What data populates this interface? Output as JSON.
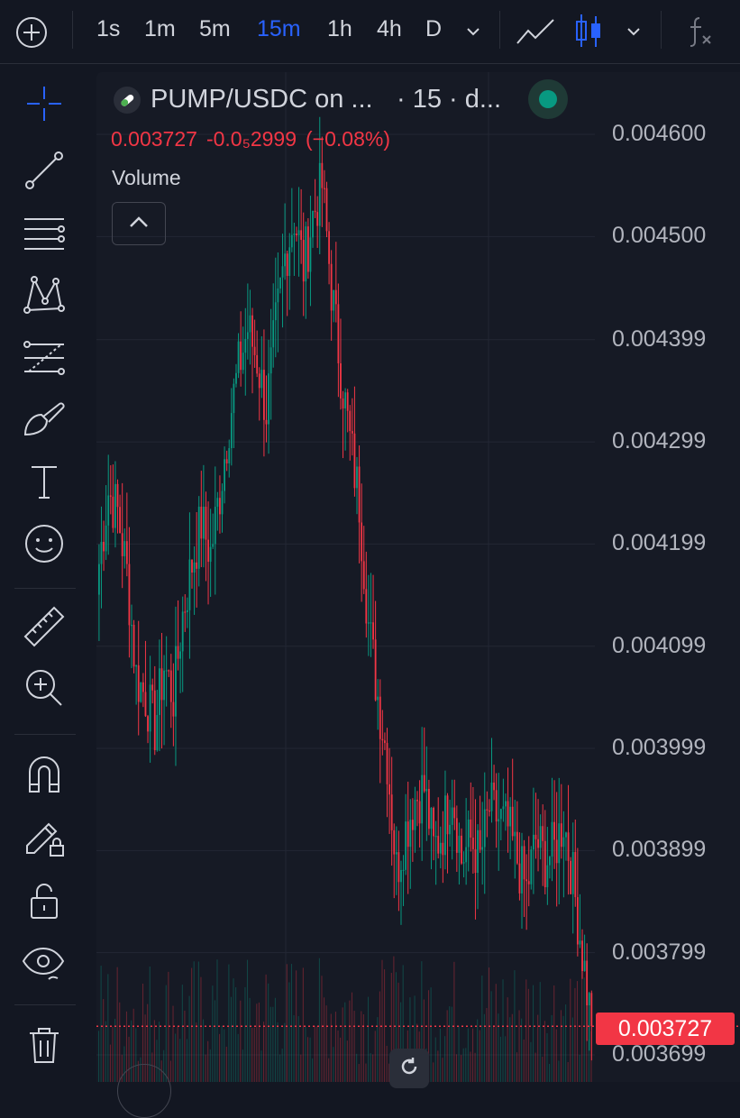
{
  "toolbar": {
    "add_icon": "plus-circle-icon",
    "intervals": [
      {
        "label": "1s",
        "active": false
      },
      {
        "label": "1m",
        "active": false
      },
      {
        "label": "5m",
        "active": false
      },
      {
        "label": "15m",
        "active": true
      },
      {
        "label": "1h",
        "active": false
      },
      {
        "label": "4h",
        "active": false
      },
      {
        "label": "D",
        "active": false
      }
    ],
    "interval_dropdown_icon": "chevron-down-icon",
    "chart_type_line_icon": "line-chart-icon",
    "chart_type_candles_icon": "candles-icon",
    "chart_type_dropdown_icon": "chevron-down-icon",
    "indicators_icon": "fx-icon"
  },
  "drawing_tools": [
    "crosshair-icon",
    "trend-line-icon",
    "horizontal-lines-icon",
    "pattern-icon",
    "fib-icon",
    "brush-icon",
    "text-icon",
    "emoji-icon",
    "ruler-icon",
    "zoom-in-icon",
    "magnet-icon",
    "lock-drawing-icon",
    "lock-icon",
    "eye-icon",
    "trash-icon"
  ],
  "legend": {
    "symbol": "PUMP/USDC on ...",
    "interval": "· 15 · d...",
    "last": "0.003727",
    "change": "-0.0₅2999",
    "change_pct": "(−0.08%)",
    "volume_label": "Volume",
    "status": "market-open"
  },
  "colors": {
    "up": "#089981",
    "down": "#f23645",
    "background": "#161a25",
    "accent": "#2962ff"
  },
  "chart_data": {
    "type": "candlestick",
    "interval": "15",
    "y_ticks": [
      "0.004600",
      "0.004500",
      "0.004399",
      "0.004299",
      "0.004199",
      "0.004099",
      "0.003999",
      "0.003899",
      "0.003799",
      "0.003699"
    ],
    "ylim": [
      0.003699,
      0.0046
    ],
    "last_price": "0.003727",
    "last_price_value": 0.003727,
    "price_path": [
      0.00418,
      0.00425,
      0.00423,
      0.00417,
      0.00407,
      0.00405,
      0.00402,
      0.00408,
      0.00405,
      0.00413,
      0.00418,
      0.00422,
      0.00419,
      0.00425,
      0.00432,
      0.00437,
      0.00441,
      0.00438,
      0.00433,
      0.00441,
      0.00448,
      0.00452,
      0.00447,
      0.00452,
      0.00455,
      0.00445,
      0.00437,
      0.0043,
      0.00424,
      0.00412,
      0.00405,
      0.00399,
      0.00388,
      0.00392,
      0.00395,
      0.00396,
      0.0039,
      0.00392,
      0.00396,
      0.00389,
      0.00391,
      0.00389,
      0.00394,
      0.00393,
      0.00392,
      0.00389,
      0.00386,
      0.00391,
      0.00389,
      0.0039,
      0.00393,
      0.00387,
      0.0038,
      0.003727
    ]
  }
}
